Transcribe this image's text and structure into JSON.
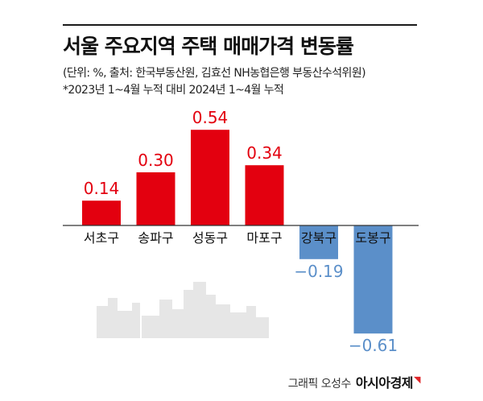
{
  "header": {
    "title": "서울 주요지역 주택 매매가격 변동률",
    "source": "(단위: %, 출처: 한국부동산원, 김효선 NH농협은행 부동산수석위원)",
    "note": "*2023년 1~4월 누적 대비 2024년 1~4월 누적"
  },
  "footer": {
    "credit_by": "그래픽 오성수",
    "credit_brand": "아시아경제",
    "brand_mark": "◥"
  },
  "colors": {
    "positive": "#e3000f",
    "negative": "#5b8fc9",
    "axis": "#333333",
    "skyline": "#e6e6e6"
  },
  "chart_data": {
    "type": "bar",
    "categories": [
      "서초구",
      "송파구",
      "성동구",
      "마포구",
      "강북구",
      "도봉구"
    ],
    "values": [
      0.14,
      0.3,
      0.54,
      0.34,
      -0.19,
      -0.61
    ],
    "value_labels": [
      "0.14",
      "0.30",
      "0.54",
      "0.34",
      "−0.19",
      "−0.61"
    ],
    "title": "서울 주요지역 주택 매매가격 변동률",
    "xlabel": "",
    "ylabel": "",
    "ylim": [
      -0.61,
      0.54
    ],
    "grid": false,
    "legend": "none"
  }
}
